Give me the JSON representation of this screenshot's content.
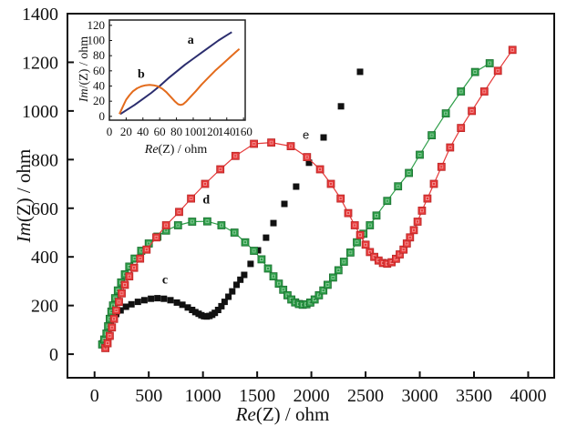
{
  "chart_data": [
    {
      "id": "main",
      "type": "scatter",
      "title": "",
      "xlabel_italic": "Re",
      "xlabel_rest": "(Z) / ohm",
      "ylabel_italic": "Im",
      "ylabel_rest": "(Z) / ohm",
      "xlim": [
        -250,
        4240
      ],
      "ylim": [
        -97,
        1400
      ],
      "xticks": [
        0,
        500,
        1000,
        1500,
        2000,
        2500,
        3000,
        3500,
        4000
      ],
      "xtick_labels": [
        "0",
        "500",
        "1000",
        "1500",
        "2000",
        "2500",
        "3000",
        "3500",
        "4000"
      ],
      "yticks": [
        0,
        200,
        400,
        600,
        800,
        1000,
        1200,
        1400
      ],
      "ytick_labels": [
        "0",
        "200",
        "400",
        "600",
        "800",
        "1000",
        "1200",
        "1400"
      ],
      "grid": false,
      "series": [
        {
          "name": "c",
          "color": "#111111",
          "line": false,
          "label_pos": [
            650,
            290
          ],
          "x": [
            75,
            95,
            110,
            130,
            150,
            175,
            200,
            240,
            290,
            340,
            400,
            460,
            520,
            580,
            640,
            700,
            760,
            810,
            860,
            900,
            930,
            960,
            985,
            1010,
            1035,
            1060,
            1085,
            1110,
            1140,
            1170,
            1200,
            1235,
            1270,
            1310,
            1345,
            1380,
            1439,
            1507,
            1582,
            1650,
            1751,
            1860,
            1978,
            2113,
            2273,
            2449
          ],
          "y": [
            45,
            60,
            80,
            105,
            130,
            150,
            165,
            180,
            195,
            205,
            215,
            222,
            228,
            230,
            228,
            222,
            212,
            203,
            192,
            182,
            173,
            166,
            160,
            156,
            155,
            157,
            162,
            170,
            182,
            197,
            215,
            236,
            258,
            285,
            306,
            326,
            371,
            427,
            479,
            539,
            618,
            689,
            787,
            891,
            1019,
            1161
          ]
        },
        {
          "name": "d",
          "color": "#2e9e49",
          "line": true,
          "label_pos": [
            1030,
            620
          ],
          "x": [
            70,
            90,
            110,
            125,
            140,
            155,
            170,
            190,
            215,
            245,
            280,
            320,
            370,
            430,
            500,
            580,
            660,
            770,
            900,
            1040,
            1170,
            1290,
            1390,
            1470,
            1540,
            1600,
            1650,
            1700,
            1740,
            1780,
            1815,
            1850,
            1885,
            1920,
            1955,
            1990,
            2030,
            2070,
            2110,
            2150,
            2200,
            2250,
            2300,
            2360,
            2420,
            2480,
            2540,
            2600,
            2700,
            2800,
            2900,
            3000,
            3110,
            3240,
            3380,
            3510,
            3645
          ],
          "y": [
            40,
            60,
            85,
            115,
            145,
            175,
            200,
            230,
            262,
            295,
            328,
            360,
            393,
            425,
            455,
            483,
            508,
            530,
            545,
            546,
            530,
            500,
            460,
            425,
            390,
            352,
            320,
            290,
            265,
            242,
            225,
            213,
            206,
            203,
            205,
            212,
            225,
            242,
            262,
            285,
            315,
            345,
            380,
            418,
            460,
            495,
            530,
            570,
            630,
            690,
            745,
            820,
            900,
            990,
            1080,
            1160,
            1196
          ]
        },
        {
          "name": "e",
          "color": "#e63a3a",
          "line": true,
          "label_pos": [
            1950,
            885
          ],
          "x": [
            100,
            120,
            140,
            160,
            180,
            200,
            225,
            250,
            280,
            320,
            365,
            420,
            480,
            570,
            660,
            780,
            890,
            1020,
            1160,
            1300,
            1470,
            1630,
            1810,
            1960,
            2080,
            2180,
            2270,
            2340,
            2400,
            2450,
            2500,
            2540,
            2580,
            2620,
            2660,
            2700,
            2740,
            2780,
            2815,
            2850,
            2880,
            2910,
            2945,
            2980,
            3020,
            3070,
            3130,
            3200,
            3280,
            3380,
            3480,
            3595,
            3720,
            3855
          ],
          "y": [
            25,
            45,
            75,
            110,
            145,
            180,
            215,
            250,
            285,
            320,
            355,
            393,
            430,
            480,
            530,
            585,
            640,
            700,
            760,
            815,
            865,
            870,
            855,
            810,
            760,
            700,
            640,
            580,
            530,
            490,
            450,
            420,
            400,
            385,
            375,
            372,
            378,
            392,
            410,
            430,
            455,
            480,
            510,
            545,
            590,
            640,
            700,
            770,
            850,
            930,
            1000,
            1080,
            1165,
            1251
          ]
        }
      ]
    },
    {
      "id": "inset",
      "type": "line",
      "title": "",
      "xlabel_italic": "Re",
      "xlabel_rest": "(Z) / ohm",
      "ylabel_italic": "Im",
      "ylabel_rest": "/(Z) / ohm",
      "xlim": [
        0,
        162
      ],
      "ylim": [
        -5,
        127
      ],
      "xticks": [
        0,
        20,
        40,
        60,
        80,
        100,
        120,
        140,
        160
      ],
      "xtick_labels": [
        "0",
        "20",
        "40",
        "60",
        "80",
        "100",
        "120",
        "140",
        "160"
      ],
      "yticks": [
        0,
        20,
        40,
        60,
        80,
        100,
        120
      ],
      "ytick_labels": [
        "0",
        "20",
        "40",
        "60",
        "80",
        "100",
        "120"
      ],
      "grid": false,
      "series": [
        {
          "name": "a",
          "color": "#2b2d6e",
          "label_pos": [
            97,
            96
          ],
          "x": [
            13,
            20,
            30,
            40,
            50,
            60,
            70,
            80,
            90,
            100,
            110,
            120,
            130,
            140,
            146
          ],
          "y": [
            3,
            8,
            15,
            23,
            31,
            40,
            50,
            59,
            68,
            76,
            84,
            92,
            100,
            107,
            111
          ]
        },
        {
          "name": "b",
          "color": "#e36b1c",
          "label_pos": [
            38,
            51
          ],
          "x": [
            12,
            14,
            17,
            20,
            24,
            28,
            33,
            38,
            43,
            48,
            53,
            58,
            63,
            68,
            73,
            78,
            82,
            85,
            88,
            92,
            97,
            103,
            110,
            118,
            126,
            134,
            142,
            150,
            155
          ],
          "y": [
            3,
            8,
            15,
            22,
            28,
            33,
            37,
            39.5,
            41,
            41.5,
            41,
            39.5,
            36.5,
            32,
            26,
            20,
            16,
            15,
            16,
            20,
            26,
            33,
            42,
            51,
            60,
            68,
            76,
            84,
            89
          ]
        }
      ]
    }
  ]
}
